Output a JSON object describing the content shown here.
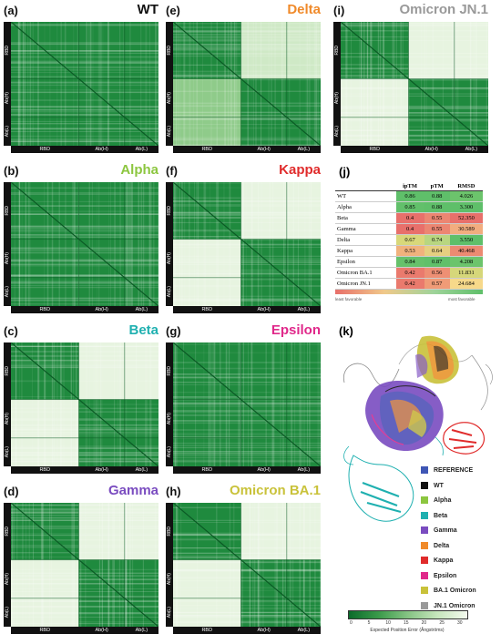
{
  "panels": [
    {
      "label": "(a)",
      "title": "WT",
      "color": "#111111",
      "mode": "full"
    },
    {
      "label": "(e)",
      "title": "Delta",
      "color": "#f08a2a",
      "mode": "upper"
    },
    {
      "label": "(i)",
      "title": "Omicron JN.1",
      "color": "#999999",
      "mode": "split"
    },
    {
      "label": "(b)",
      "title": "Alpha",
      "color": "#8cc63f",
      "mode": "full"
    },
    {
      "label": "(f)",
      "title": "Kappa",
      "color": "#e02b2b",
      "mode": "split"
    },
    {
      "label": "(c)",
      "title": "Beta",
      "color": "#1fb0b0",
      "mode": "split"
    },
    {
      "label": "(g)",
      "title": "Epsilon",
      "color": "#e0288a",
      "mode": "full"
    },
    {
      "label": "(d)",
      "title": "Gamma",
      "color": "#7a4cc0",
      "mode": "split"
    },
    {
      "label": "(h)",
      "title": "Omicron BA.1",
      "color": "#c9c23a",
      "mode": "split"
    }
  ],
  "axis_labels": {
    "rbd": "RBD",
    "abh": "Ab(H)",
    "abl": "Ab(L)"
  },
  "table": {
    "label": "(j)",
    "headers": [
      "",
      "ipTM",
      "pTM",
      "RMSD"
    ],
    "rows": [
      {
        "name": "WT",
        "iptm": "0.86",
        "ptm": "0.88",
        "rmsd": "4.026",
        "colors": [
          "#5fbf6a",
          "#5fbf6a",
          "#6cc46c"
        ]
      },
      {
        "name": "Alpha",
        "iptm": "0.85",
        "ptm": "0.88",
        "rmsd": "3.300",
        "colors": [
          "#62c06b",
          "#5fbf6a",
          "#5fbf6a"
        ]
      },
      {
        "name": "Beta",
        "iptm": "0.4",
        "ptm": "0.55",
        "rmsd": "52.350",
        "colors": [
          "#e8706b",
          "#ec8672",
          "#e8706b"
        ]
      },
      {
        "name": "Gamma",
        "iptm": "0.4",
        "ptm": "0.55",
        "rmsd": "30.589",
        "colors": [
          "#e8706b",
          "#ec8672",
          "#f2ad7f"
        ]
      },
      {
        "name": "Delta",
        "iptm": "0.67",
        "ptm": "0.74",
        "rmsd": "3.550",
        "colors": [
          "#d8d87a",
          "#b8d680",
          "#5fbf6a"
        ]
      },
      {
        "name": "Kappa",
        "iptm": "0.53",
        "ptm": "0.64",
        "rmsd": "40.468",
        "colors": [
          "#f0b27d",
          "#e6cf80",
          "#ec8a72"
        ]
      },
      {
        "name": "Epsilon",
        "iptm": "0.84",
        "ptm": "0.87",
        "rmsd": "4.208",
        "colors": [
          "#66c16b",
          "#60c06a",
          "#6cc46c"
        ]
      },
      {
        "name": "Omicron BA.1",
        "iptm": "0.42",
        "ptm": "0.56",
        "rmsd": "11.831",
        "colors": [
          "#ea7a6d",
          "#ee8f74",
          "#d6d77a"
        ]
      },
      {
        "name": "Omicron JN.1",
        "iptm": "0.42",
        "ptm": "0.57",
        "rmsd": "24.684",
        "colors": [
          "#ea7a6d",
          "#f09b77",
          "#f7d98a"
        ]
      }
    ],
    "least_label": "least favorable",
    "most_label": "most favorable"
  },
  "structure": {
    "label": "(k)"
  },
  "legend": [
    {
      "name": "REFERENCE",
      "color": "#3f56b5"
    },
    {
      "name": "WT",
      "color": "#111111"
    },
    {
      "name": "Alpha",
      "color": "#8cc63f"
    },
    {
      "name": "Beta",
      "color": "#1fb0b0"
    },
    {
      "name": "Gamma",
      "color": "#7a4cc0"
    },
    {
      "name": "Delta",
      "color": "#f08a2a"
    },
    {
      "name": "Kappa",
      "color": "#e02b2b"
    },
    {
      "name": "Epsilon",
      "color": "#e0288a"
    },
    {
      "name": "BA.1 Omicron",
      "color": "#c9c23a"
    },
    {
      "name": "JN.1 Omicron",
      "color": "#999999"
    }
  ],
  "colorbar": {
    "ticks": [
      "0",
      "5",
      "10",
      "15",
      "20",
      "25",
      "30"
    ],
    "title": "Expected Position Error (Ångströms)"
  }
}
